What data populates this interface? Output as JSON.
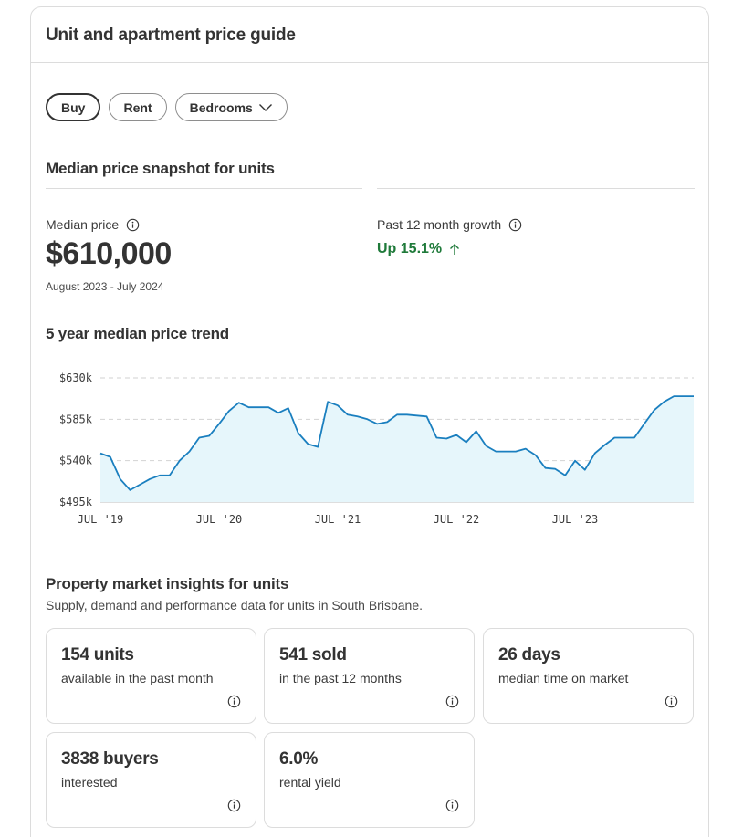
{
  "header": {
    "title": "Unit and apartment price guide"
  },
  "filters": {
    "buy": "Buy",
    "rent": "Rent",
    "bedrooms": "Bedrooms"
  },
  "snapshot": {
    "title": "Median price snapshot for units",
    "median_label": "Median price",
    "median_value": "$610,000",
    "period": "August 2023 - July 2024",
    "growth_label": "Past 12 month growth",
    "growth_value": "Up 15.1%",
    "growth_color": "#1f7a3a"
  },
  "trend": {
    "title": "5 year median price trend"
  },
  "chart_data": {
    "type": "area",
    "xlabel": "",
    "ylabel": "",
    "x_ticks": [
      "JUL '19",
      "JUL '20",
      "JUL '21",
      "JUL '22",
      "JUL '23"
    ],
    "y_ticks": [
      "$630k",
      "$585k",
      "$540k",
      "$495k"
    ],
    "ylim": [
      495,
      630
    ],
    "grid": true,
    "line_color": "#1a7fbf",
    "fill_color": "#e6f6fb",
    "x": [
      "2019-07",
      "2019-08",
      "2019-09",
      "2019-10",
      "2019-11",
      "2019-12",
      "2020-01",
      "2020-02",
      "2020-03",
      "2020-04",
      "2020-05",
      "2020-06",
      "2020-07",
      "2020-08",
      "2020-09",
      "2020-10",
      "2020-11",
      "2020-12",
      "2021-01",
      "2021-02",
      "2021-03",
      "2021-04",
      "2021-05",
      "2021-06",
      "2021-07",
      "2021-08",
      "2021-09",
      "2021-10",
      "2021-11",
      "2021-12",
      "2022-01",
      "2022-02",
      "2022-03",
      "2022-04",
      "2022-05",
      "2022-06",
      "2022-07",
      "2022-08",
      "2022-09",
      "2022-10",
      "2022-11",
      "2022-12",
      "2023-01",
      "2023-02",
      "2023-03",
      "2023-04",
      "2023-05",
      "2023-06",
      "2023-07",
      "2023-08",
      "2023-09",
      "2023-10",
      "2023-11",
      "2023-12",
      "2024-01",
      "2024-02",
      "2024-03",
      "2024-04",
      "2024-05",
      "2024-06",
      "2024-07"
    ],
    "values": [
      548,
      544,
      520,
      508,
      514,
      520,
      524,
      524,
      540,
      550,
      565,
      567,
      580,
      594,
      603,
      598,
      598,
      598,
      592,
      597,
      570,
      558,
      555,
      604,
      600,
      590,
      588,
      585,
      580,
      582,
      590,
      590,
      589,
      588,
      565,
      564,
      568,
      560,
      572,
      556,
      550,
      550,
      550,
      553,
      546,
      532,
      531,
      524,
      540,
      530,
      548,
      557,
      565,
      565,
      565,
      580,
      595,
      604,
      610,
      610,
      610
    ]
  },
  "insights": {
    "title": "Property market insights for units",
    "subtitle": "Supply, demand and performance data for units in South Brisbane.",
    "tiles": [
      {
        "value": "154 units",
        "desc": "available in the past month"
      },
      {
        "value": "541 sold",
        "desc": "in the past 12 months"
      },
      {
        "value": "26 days",
        "desc": "median time on market"
      },
      {
        "value": "3838 buyers",
        "desc": "interested"
      },
      {
        "value": "6.0%",
        "desc": "rental yield"
      }
    ]
  }
}
